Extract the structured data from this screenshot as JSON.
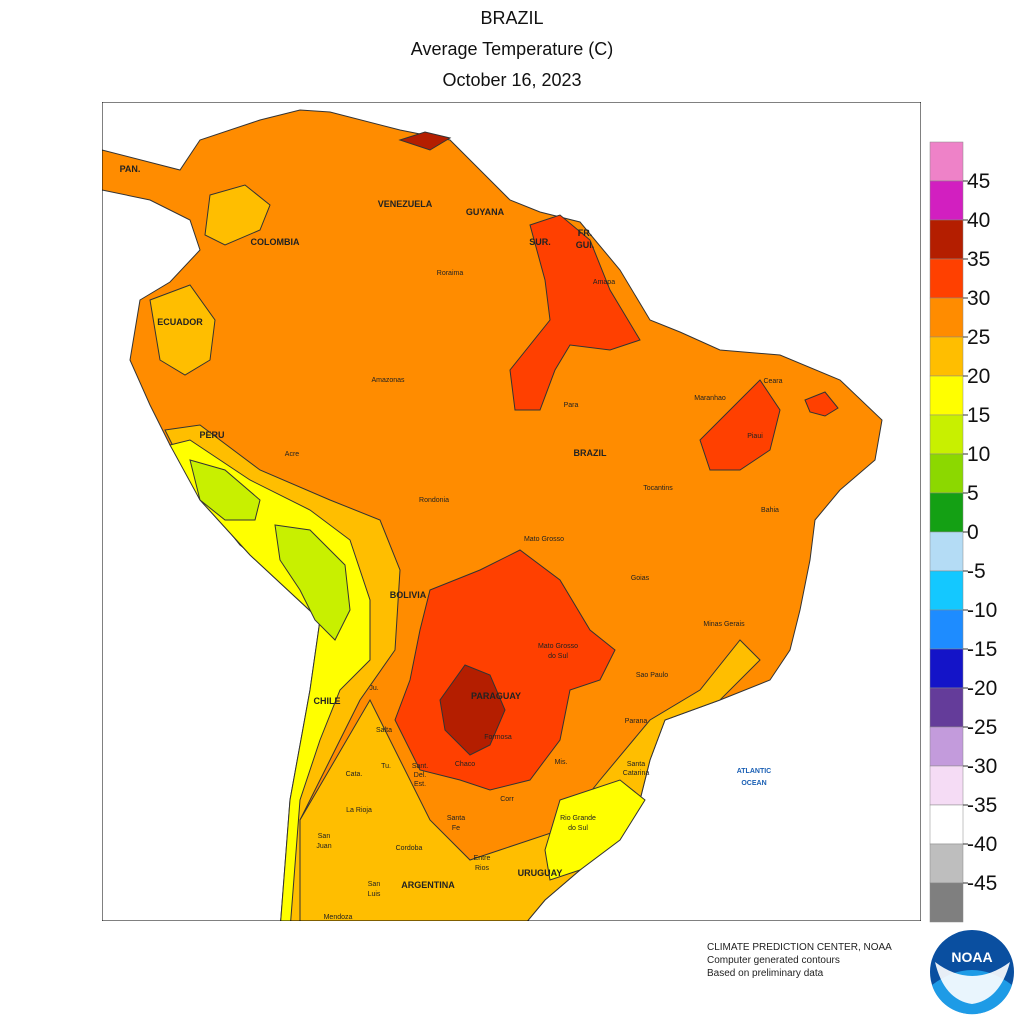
{
  "header": {
    "title": "BRAZIL",
    "subtitle": "Average Temperature (C)",
    "date": "October 16, 2023"
  },
  "legend": {
    "levels": [
      45,
      40,
      35,
      30,
      25,
      20,
      15,
      10,
      5,
      0,
      -5,
      -10,
      -15,
      -20,
      -25,
      -30,
      -35,
      -40,
      -45
    ],
    "colors": [
      "#ee82c8",
      "#d21fc0",
      "#b41e00",
      "#ff4000",
      "#ff8c00",
      "#ffbe00",
      "#ffff00",
      "#c8f000",
      "#8cd800",
      "#14a014",
      "#b4dcf5",
      "#14c8ff",
      "#1e8cff",
      "#1414c8",
      "#643c9a",
      "#c39bdc",
      "#f5dcf5",
      "#ffffff",
      "#bebebe",
      "#7f7f7f"
    ]
  },
  "map": {
    "labels": [
      "PAN.",
      "VENEZUELA",
      "GUYANA",
      "SUR.",
      [
        "FR.",
        "GUI."
      ],
      "COLOMBIA",
      "ECUADOR",
      "PERU",
      "Roraima",
      "Amapa",
      "Amazonas",
      "Para",
      "Maranhao",
      "Ceara",
      "Piaui",
      "BRAZIL",
      "Acre",
      "Rondonia",
      "Tocantins",
      "Bahia",
      "Mato Grosso",
      "Goias",
      "BOLIVIA",
      "Minas Gerais",
      [
        "Mato Grosso",
        "do Sul"
      ],
      "Sao Paulo",
      "PARAGUAY",
      "CHILE",
      "Ju.",
      "Salta",
      "Formosa",
      "Parana",
      "Tu.",
      "Chaco",
      [
        "Sant.",
        "Del.",
        "Est."
      ],
      "Cata.",
      "Mis.",
      [
        "Santa",
        "Catarina"
      ],
      "La Rioja",
      [
        "Santa",
        "Fe"
      ],
      "Corr",
      [
        "Rio Grande",
        "do Sul"
      ],
      [
        "San",
        "Juan"
      ],
      "Cordoba",
      [
        "Entre",
        "Rios"
      ],
      "URUGUAY",
      "ARGENTINA",
      [
        "San",
        "Luis"
      ],
      "Mendoza",
      [
        "ATLANTIC",
        "OCEAN"
      ]
    ]
  },
  "footer": {
    "lines": [
      "CLIMATE PREDICTION CENTER, NOAA",
      "Computer generated contours",
      "Based on preliminary data"
    ],
    "logo": "NOAA"
  }
}
